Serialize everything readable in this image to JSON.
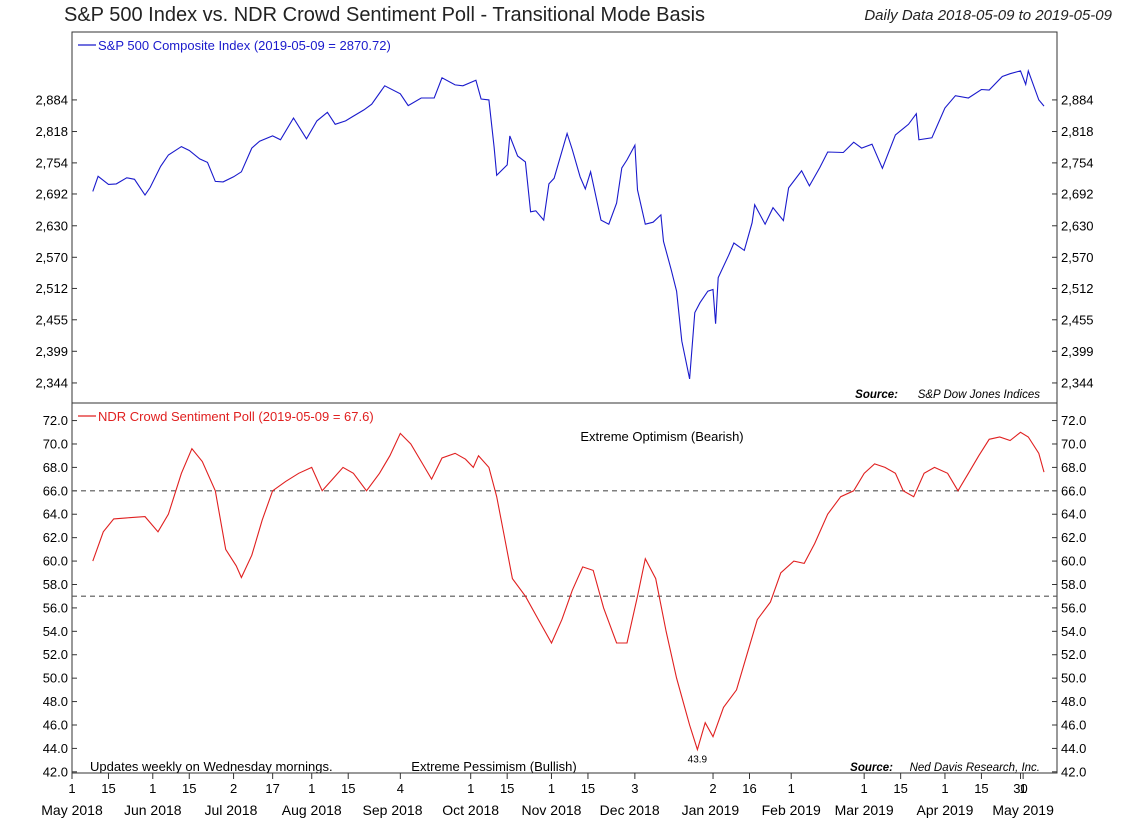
{
  "header": {
    "title": "S&P 500 Index vs. NDR Crowd Sentiment Poll - Transitional Mode Basis",
    "date_range": "Daily Data 2018-05-09 to 2019-05-09"
  },
  "chart_data": [
    {
      "type": "line",
      "name": "S&P 500 Composite Index",
      "legend": "S&P 500 Composite Index (2019-05-09 = 2870.72)",
      "color": "#1a1acc",
      "source_label": "Source:",
      "source_text": "S&P Dow Jones Indices",
      "y_ticks": [
        2344,
        2399,
        2455,
        2512,
        2570,
        2630,
        2692,
        2754,
        2818,
        2884
      ],
      "y_tick_labels": [
        "2,344",
        "2,399",
        "2,455",
        "2,512",
        "2,570",
        "2,630",
        "2,692",
        "2,754",
        "2,818",
        "2,884"
      ],
      "ylim": [
        2320,
        3040
      ],
      "y_scale": "log",
      "x_range": [
        "2018-05-09",
        "2019-05-09"
      ],
      "points": [
        [
          "2018-05-09",
          2697
        ],
        [
          "2018-05-11",
          2727
        ],
        [
          "2018-05-15",
          2711
        ],
        [
          "2018-05-18",
          2712
        ],
        [
          "2018-05-22",
          2724
        ],
        [
          "2018-05-25",
          2721
        ],
        [
          "2018-05-29",
          2690
        ],
        [
          "2018-05-31",
          2705
        ],
        [
          "2018-06-04",
          2747
        ],
        [
          "2018-06-07",
          2770
        ],
        [
          "2018-06-12",
          2787
        ],
        [
          "2018-06-15",
          2779
        ],
        [
          "2018-06-19",
          2762
        ],
        [
          "2018-06-22",
          2755
        ],
        [
          "2018-06-25",
          2717
        ],
        [
          "2018-06-28",
          2716
        ],
        [
          "2018-07-02",
          2726
        ],
        [
          "2018-07-05",
          2736
        ],
        [
          "2018-07-09",
          2784
        ],
        [
          "2018-07-12",
          2798
        ],
        [
          "2018-07-17",
          2809
        ],
        [
          "2018-07-20",
          2801
        ],
        [
          "2018-07-25",
          2846
        ],
        [
          "2018-07-30",
          2803
        ],
        [
          "2018-08-03",
          2840
        ],
        [
          "2018-08-07",
          2858
        ],
        [
          "2018-08-10",
          2833
        ],
        [
          "2018-08-14",
          2840
        ],
        [
          "2018-08-17",
          2850
        ],
        [
          "2018-08-21",
          2863
        ],
        [
          "2018-08-24",
          2875
        ],
        [
          "2018-08-29",
          2914
        ],
        [
          "2018-09-04",
          2897
        ],
        [
          "2018-09-07",
          2872
        ],
        [
          "2018-09-12",
          2888
        ],
        [
          "2018-09-17",
          2888
        ],
        [
          "2018-09-20",
          2931
        ],
        [
          "2018-09-25",
          2916
        ],
        [
          "2018-09-28",
          2914
        ],
        [
          "2018-10-03",
          2926
        ],
        [
          "2018-10-05",
          2886
        ],
        [
          "2018-10-08",
          2884
        ],
        [
          "2018-10-10",
          2786
        ],
        [
          "2018-10-11",
          2729
        ],
        [
          "2018-10-15",
          2750
        ],
        [
          "2018-10-16",
          2809
        ],
        [
          "2018-10-19",
          2768
        ],
        [
          "2018-10-22",
          2756
        ],
        [
          "2018-10-24",
          2657
        ],
        [
          "2018-10-26",
          2659
        ],
        [
          "2018-10-29",
          2641
        ],
        [
          "2018-10-31",
          2712
        ],
        [
          "2018-11-02",
          2723
        ],
        [
          "2018-11-07",
          2814
        ],
        [
          "2018-11-09",
          2781
        ],
        [
          "2018-11-12",
          2726
        ],
        [
          "2018-11-14",
          2702
        ],
        [
          "2018-11-16",
          2736
        ],
        [
          "2018-11-20",
          2641
        ],
        [
          "2018-11-23",
          2633
        ],
        [
          "2018-11-26",
          2674
        ],
        [
          "2018-11-28",
          2744
        ],
        [
          "2018-11-30",
          2760
        ],
        [
          "2018-12-03",
          2790
        ],
        [
          "2018-12-04",
          2700
        ],
        [
          "2018-12-07",
          2633
        ],
        [
          "2018-12-10",
          2637
        ],
        [
          "2018-12-13",
          2651
        ],
        [
          "2018-12-14",
          2600
        ],
        [
          "2018-12-17",
          2546
        ],
        [
          "2018-12-19",
          2507
        ],
        [
          "2018-12-21",
          2417
        ],
        [
          "2018-12-24",
          2351
        ],
        [
          "2018-12-26",
          2468
        ],
        [
          "2018-12-28",
          2486
        ],
        [
          "2018-12-31",
          2507
        ],
        [
          "2019-01-02",
          2510
        ],
        [
          "2019-01-03",
          2448
        ],
        [
          "2019-01-04",
          2532
        ],
        [
          "2019-01-08",
          2574
        ],
        [
          "2019-01-10",
          2597
        ],
        [
          "2019-01-14",
          2583
        ],
        [
          "2019-01-17",
          2636
        ],
        [
          "2019-01-18",
          2671
        ],
        [
          "2019-01-22",
          2633
        ],
        [
          "2019-01-25",
          2665
        ],
        [
          "2019-01-29",
          2640
        ],
        [
          "2019-01-31",
          2704
        ],
        [
          "2019-02-05",
          2738
        ],
        [
          "2019-02-08",
          2708
        ],
        [
          "2019-02-12",
          2745
        ],
        [
          "2019-02-15",
          2776
        ],
        [
          "2019-02-21",
          2775
        ],
        [
          "2019-02-25",
          2796
        ],
        [
          "2019-02-28",
          2784
        ],
        [
          "2019-03-04",
          2792
        ],
        [
          "2019-03-08",
          2743
        ],
        [
          "2019-03-13",
          2811
        ],
        [
          "2019-03-18",
          2833
        ],
        [
          "2019-03-21",
          2855
        ],
        [
          "2019-03-22",
          2801
        ],
        [
          "2019-03-27",
          2805
        ],
        [
          "2019-04-01",
          2867
        ],
        [
          "2019-04-05",
          2893
        ],
        [
          "2019-04-10",
          2888
        ],
        [
          "2019-04-15",
          2906
        ],
        [
          "2019-04-18",
          2905
        ],
        [
          "2019-04-23",
          2934
        ],
        [
          "2019-04-26",
          2940
        ],
        [
          "2019-04-30",
          2946
        ],
        [
          "2019-05-02",
          2917
        ],
        [
          "2019-05-03",
          2946
        ],
        [
          "2019-05-07",
          2884
        ],
        [
          "2019-05-09",
          2871
        ]
      ]
    },
    {
      "type": "line",
      "name": "NDR Crowd Sentiment Poll",
      "legend": "NDR Crowd Sentiment Poll (2019-05-09 = 67.6)",
      "color": "#e02020",
      "source_label": "Source:",
      "source_text": "Ned Davis Research, Inc.",
      "upper_label": "Extreme Optimism (Bearish)",
      "lower_label": "Extreme Pessimism (Bullish)",
      "note": "Updates weekly on Wednesday mornings.",
      "min_label": "43.9",
      "thresholds": [
        66.0,
        57.0
      ],
      "ylim": [
        41.9,
        73.5
      ],
      "y_ticks": [
        42.0,
        44.0,
        46.0,
        48.0,
        50.0,
        52.0,
        54.0,
        56.0,
        58.0,
        60.0,
        62.0,
        64.0,
        66.0,
        68.0,
        70.0,
        72.0
      ],
      "y_tick_labels": [
        "42.0",
        "44.0",
        "46.0",
        "48.0",
        "50.0",
        "52.0",
        "54.0",
        "56.0",
        "58.0",
        "60.0",
        "62.0",
        "64.0",
        "66.0",
        "68.0",
        "70.0",
        "72.0"
      ],
      "points": [
        [
          "2018-05-09",
          60.0
        ],
        [
          "2018-05-13",
          62.5
        ],
        [
          "2018-05-17",
          63.6
        ],
        [
          "2018-05-23",
          63.7
        ],
        [
          "2018-05-29",
          63.8
        ],
        [
          "2018-06-03",
          62.5
        ],
        [
          "2018-06-07",
          64.0
        ],
        [
          "2018-06-12",
          67.5
        ],
        [
          "2018-06-16",
          69.6
        ],
        [
          "2018-06-20",
          68.5
        ],
        [
          "2018-06-25",
          66.0
        ],
        [
          "2018-06-29",
          61.0
        ],
        [
          "2018-07-03",
          59.6
        ],
        [
          "2018-07-05",
          58.6
        ],
        [
          "2018-07-09",
          60.5
        ],
        [
          "2018-07-13",
          63.5
        ],
        [
          "2018-07-17",
          66.0
        ],
        [
          "2018-07-22",
          66.8
        ],
        [
          "2018-07-27",
          67.5
        ],
        [
          "2018-08-01",
          68.0
        ],
        [
          "2018-08-05",
          66.0
        ],
        [
          "2018-08-09",
          67.0
        ],
        [
          "2018-08-13",
          68.0
        ],
        [
          "2018-08-17",
          67.5
        ],
        [
          "2018-08-22",
          66.0
        ],
        [
          "2018-08-27",
          67.5
        ],
        [
          "2018-08-31",
          69.0
        ],
        [
          "2018-09-04",
          70.9
        ],
        [
          "2018-09-08",
          70.0
        ],
        [
          "2018-09-12",
          68.5
        ],
        [
          "2018-09-16",
          67.0
        ],
        [
          "2018-09-20",
          68.8
        ],
        [
          "2018-09-25",
          69.2
        ],
        [
          "2018-09-29",
          68.7
        ],
        [
          "2018-10-02",
          68.0
        ],
        [
          "2018-10-04",
          69.0
        ],
        [
          "2018-10-08",
          68.0
        ],
        [
          "2018-10-11",
          65.5
        ],
        [
          "2018-10-14",
          62.0
        ],
        [
          "2018-10-17",
          58.5
        ],
        [
          "2018-10-22",
          57.0
        ],
        [
          "2018-10-27",
          55.0
        ],
        [
          "2018-11-01",
          53.0
        ],
        [
          "2018-11-05",
          55.0
        ],
        [
          "2018-11-09",
          57.5
        ],
        [
          "2018-11-13",
          59.5
        ],
        [
          "2018-11-17",
          59.2
        ],
        [
          "2018-11-21",
          56.0
        ],
        [
          "2018-11-26",
          53.0
        ],
        [
          "2018-11-30",
          53.0
        ],
        [
          "2018-12-04",
          57.0
        ],
        [
          "2018-12-07",
          60.2
        ],
        [
          "2018-12-11",
          58.5
        ],
        [
          "2018-12-15",
          54.0
        ],
        [
          "2018-12-19",
          50.0
        ],
        [
          "2018-12-24",
          46.0
        ],
        [
          "2018-12-27",
          43.9
        ],
        [
          "2018-12-30",
          46.2
        ],
        [
          "2019-01-02",
          45.0
        ],
        [
          "2019-01-06",
          47.5
        ],
        [
          "2019-01-11",
          49.0
        ],
        [
          "2019-01-15",
          52.0
        ],
        [
          "2019-01-19",
          55.0
        ],
        [
          "2019-01-24",
          56.5
        ],
        [
          "2019-01-28",
          59.0
        ],
        [
          "2019-02-02",
          60.0
        ],
        [
          "2019-02-06",
          59.8
        ],
        [
          "2019-02-10",
          61.5
        ],
        [
          "2019-02-15",
          64.0
        ],
        [
          "2019-02-20",
          65.5
        ],
        [
          "2019-02-25",
          66.0
        ],
        [
          "2019-03-01",
          67.5
        ],
        [
          "2019-03-05",
          68.3
        ],
        [
          "2019-03-09",
          68.0
        ],
        [
          "2019-03-13",
          67.5
        ],
        [
          "2019-03-16",
          66.0
        ],
        [
          "2019-03-20",
          65.5
        ],
        [
          "2019-03-24",
          67.5
        ],
        [
          "2019-03-28",
          68.0
        ],
        [
          "2019-04-02",
          67.5
        ],
        [
          "2019-04-06",
          66.0
        ],
        [
          "2019-04-10",
          67.5
        ],
        [
          "2019-04-14",
          69.0
        ],
        [
          "2019-04-18",
          70.4
        ],
        [
          "2019-04-22",
          70.6
        ],
        [
          "2019-04-26",
          70.3
        ],
        [
          "2019-04-30",
          71.0
        ],
        [
          "2019-05-03",
          70.6
        ],
        [
          "2019-05-07",
          69.2
        ],
        [
          "2019-05-09",
          67.6
        ]
      ]
    }
  ],
  "x_axis": {
    "day_ticks": [
      {
        "label": "1",
        "date": "2018-05-01"
      },
      {
        "label": "15",
        "date": "2018-05-15"
      },
      {
        "label": "1",
        "date": "2018-06-01"
      },
      {
        "label": "15",
        "date": "2018-06-15"
      },
      {
        "label": "2",
        "date": "2018-07-02"
      },
      {
        "label": "17",
        "date": "2018-07-17"
      },
      {
        "label": "1",
        "date": "2018-08-01"
      },
      {
        "label": "15",
        "date": "2018-08-15"
      },
      {
        "label": "4",
        "date": "2018-09-04"
      },
      {
        "label": "1",
        "date": "2018-10-01"
      },
      {
        "label": "15",
        "date": "2018-10-15"
      },
      {
        "label": "1",
        "date": "2018-11-01"
      },
      {
        "label": "15",
        "date": "2018-11-15"
      },
      {
        "label": "3",
        "date": "2018-12-03"
      },
      {
        "label": "2",
        "date": "2019-01-02"
      },
      {
        "label": "16",
        "date": "2019-01-16"
      },
      {
        "label": "1",
        "date": "2019-02-01"
      },
      {
        "label": "1",
        "date": "2019-03-01"
      },
      {
        "label": "15",
        "date": "2019-03-15"
      },
      {
        "label": "1",
        "date": "2019-04-01"
      },
      {
        "label": "15",
        "date": "2019-04-15"
      },
      {
        "label": "30",
        "date": "2019-04-30"
      },
      {
        "label": "1",
        "date": "2019-05-01"
      }
    ],
    "month_labels": [
      {
        "label": "May 2018",
        "date": "2018-05-01"
      },
      {
        "label": "Jun 2018",
        "date": "2018-06-01"
      },
      {
        "label": "Jul 2018",
        "date": "2018-07-01"
      },
      {
        "label": "Aug 2018",
        "date": "2018-08-01"
      },
      {
        "label": "Sep 2018",
        "date": "2018-09-01"
      },
      {
        "label": "Oct 2018",
        "date": "2018-10-01"
      },
      {
        "label": "Nov 2018",
        "date": "2018-11-01"
      },
      {
        "label": "Dec 2018",
        "date": "2018-12-01"
      },
      {
        "label": "Jan 2019",
        "date": "2019-01-01"
      },
      {
        "label": "Feb 2019",
        "date": "2019-02-01"
      },
      {
        "label": "Mar 2019",
        "date": "2019-03-01"
      },
      {
        "label": "Apr 2019",
        "date": "2019-04-01"
      },
      {
        "label": "May 2019",
        "date": "2019-05-01"
      }
    ]
  }
}
